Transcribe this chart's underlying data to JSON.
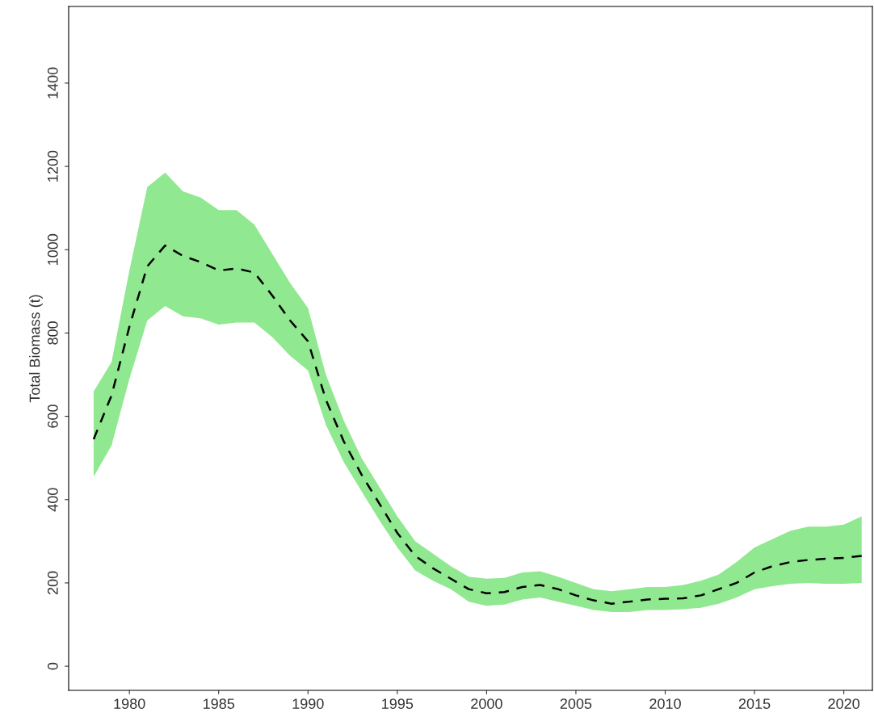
{
  "chart_data": {
    "type": "line",
    "ylabel": "Total Biomass (t)",
    "x": [
      1978,
      1979,
      1980,
      1981,
      1982,
      1983,
      1984,
      1985,
      1986,
      1987,
      1988,
      1989,
      1990,
      1991,
      1992,
      1993,
      1994,
      1995,
      1996,
      1997,
      1998,
      1999,
      2000,
      2001,
      2002,
      2003,
      2004,
      2005,
      2006,
      2007,
      2008,
      2009,
      2010,
      2011,
      2012,
      2013,
      2014,
      2015,
      2016,
      2017,
      2018,
      2019,
      2020,
      2021
    ],
    "series": [
      {
        "color": "#000000",
        "line_style": "dashed",
        "values": [
          545,
          650,
          815,
          960,
          1010,
          985,
          970,
          950,
          955,
          945,
          890,
          830,
          780,
          640,
          540,
          460,
          390,
          320,
          265,
          235,
          210,
          185,
          175,
          178,
          190,
          195,
          185,
          170,
          158,
          150,
          155,
          160,
          162,
          163,
          170,
          185,
          200,
          225,
          240,
          250,
          255,
          258,
          260,
          265
        ],
        "upper": [
          660,
          730,
          950,
          1150,
          1185,
          1140,
          1125,
          1095,
          1095,
          1060,
          990,
          920,
          860,
          700,
          590,
          500,
          430,
          360,
          300,
          270,
          240,
          215,
          210,
          212,
          225,
          228,
          215,
          200,
          185,
          180,
          185,
          190,
          190,
          195,
          205,
          220,
          250,
          285,
          305,
          325,
          335,
          335,
          340,
          360
        ],
        "lower": [
          455,
          530,
          690,
          830,
          865,
          840,
          835,
          820,
          825,
          825,
          790,
          745,
          710,
          580,
          490,
          420,
          350,
          285,
          230,
          205,
          185,
          155,
          145,
          148,
          160,
          165,
          155,
          145,
          135,
          130,
          130,
          135,
          135,
          137,
          140,
          150,
          165,
          185,
          192,
          198,
          200,
          198,
          198,
          200
        ]
      }
    ],
    "colors": [
      "#90e890"
    ],
    "xlim": [
      1976.6,
      2021.6
    ],
    "ylim": [
      -58,
      1584
    ],
    "xticks": [
      1980,
      1985,
      1990,
      1995,
      2000,
      2005,
      2010,
      2015,
      2020
    ],
    "yticks": [
      0,
      200,
      400,
      600,
      800,
      1000,
      1200,
      1400
    ],
    "grid": false,
    "legend": false,
    "marker": "none"
  }
}
